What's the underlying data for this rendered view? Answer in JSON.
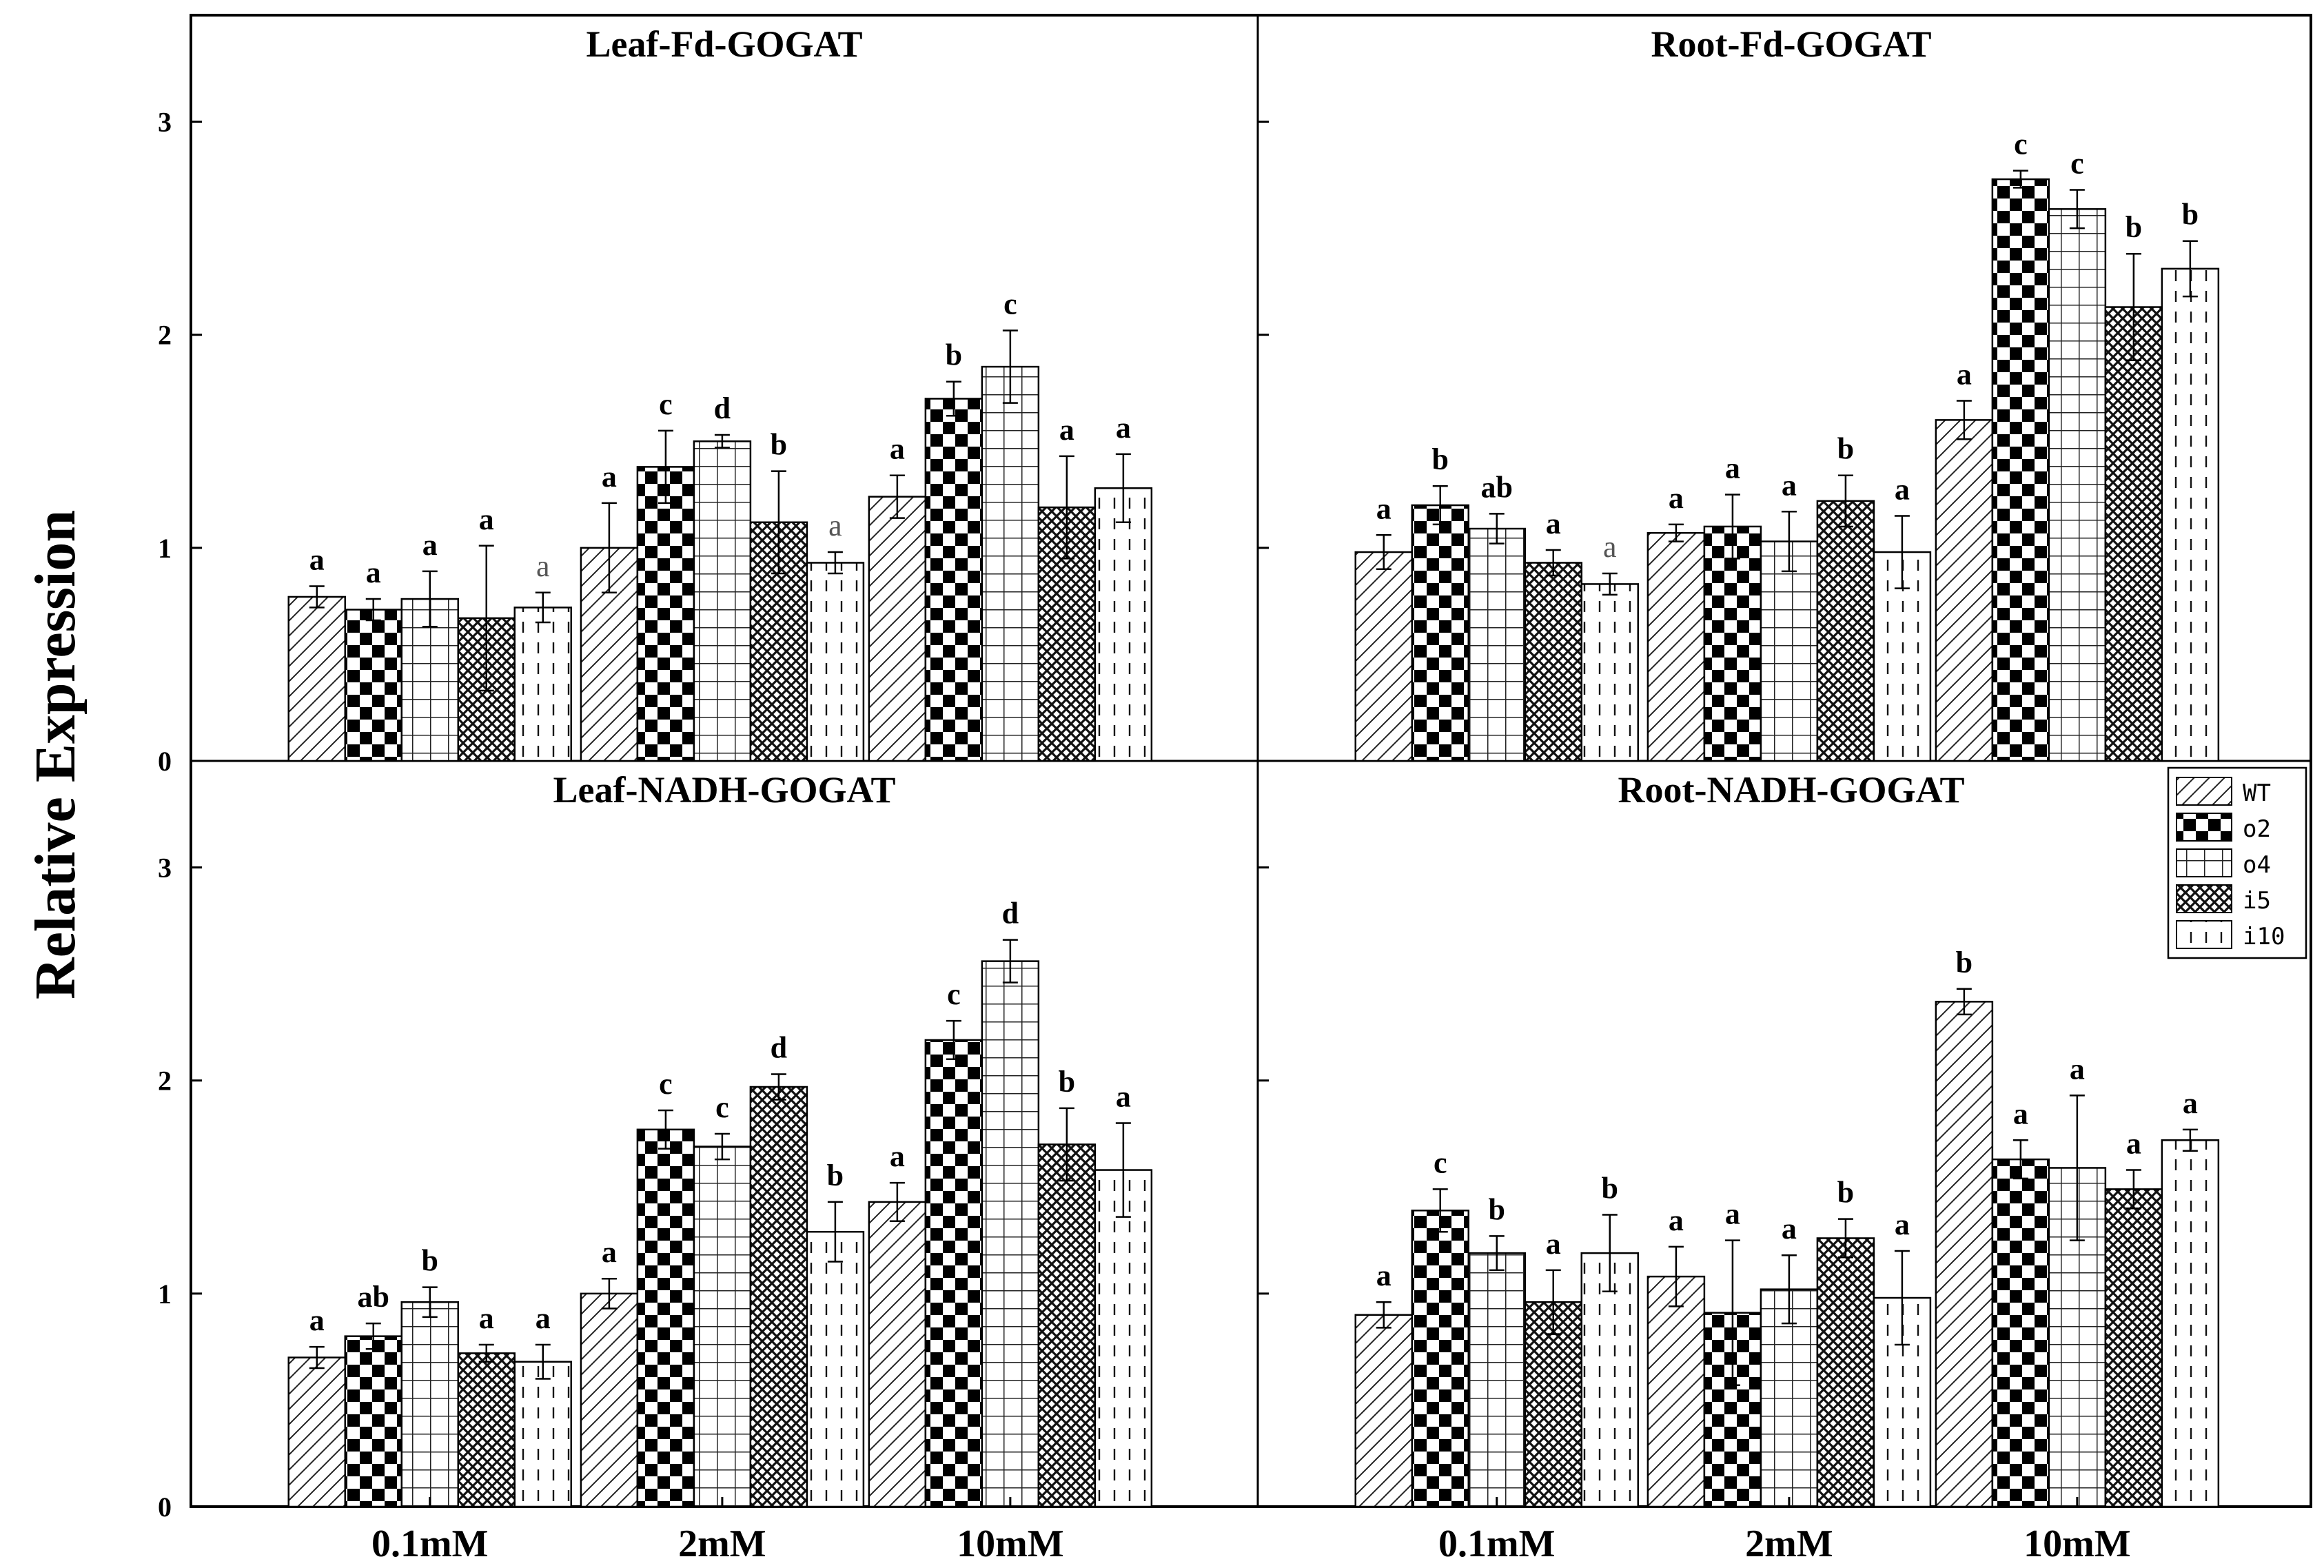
{
  "chart_data": {
    "type": "bar",
    "ylabel": "Relative Expression",
    "xlabel": "",
    "ylim": [
      0,
      3.5
    ],
    "yticks": [
      "0",
      "1",
      "2",
      "3"
    ],
    "categories": [
      "0.1mM",
      "2mM",
      "10mM"
    ],
    "series_names": [
      "WT",
      "o2",
      "o4",
      "i5",
      "i10"
    ],
    "legend": {
      "placement": "right",
      "entries": [
        "WT",
        "o2",
        "o4",
        "i5",
        "i10"
      ]
    },
    "panels": [
      {
        "title": "Leaf-Fd-GOGAT",
        "values": [
          [
            0.77,
            0.71,
            0.76,
            0.67,
            0.72
          ],
          [
            1.0,
            1.38,
            1.5,
            1.12,
            0.93
          ],
          [
            1.24,
            1.7,
            1.85,
            1.19,
            1.28
          ]
        ],
        "errors": [
          [
            0.05,
            0.05,
            0.13,
            0.34,
            0.07
          ],
          [
            0.21,
            0.17,
            0.03,
            0.24,
            0.05
          ],
          [
            0.1,
            0.08,
            0.17,
            0.24,
            0.16
          ]
        ],
        "labels": [
          [
            "a",
            "a",
            "a",
            "a",
            "a"
          ],
          [
            "a",
            "c",
            "d",
            "b",
            "a"
          ],
          [
            "a",
            "b",
            "c",
            "a",
            "a"
          ]
        ]
      },
      {
        "title": "Root-Fd-GOGAT",
        "values": [
          [
            0.98,
            1.2,
            1.09,
            0.93,
            0.83
          ],
          [
            1.07,
            1.1,
            1.03,
            1.22,
            0.98
          ],
          [
            1.6,
            2.73,
            2.59,
            2.13,
            2.31
          ]
        ],
        "errors": [
          [
            0.08,
            0.09,
            0.07,
            0.06,
            0.05
          ],
          [
            0.04,
            0.15,
            0.14,
            0.12,
            0.17
          ],
          [
            0.09,
            0.04,
            0.09,
            0.25,
            0.13
          ]
        ],
        "labels": [
          [
            "a",
            "b",
            "ab",
            "a",
            "a"
          ],
          [
            "a",
            "a",
            "a",
            "b",
            "a"
          ],
          [
            "a",
            "c",
            "c",
            "b",
            "b"
          ]
        ]
      },
      {
        "title": "Leaf-NADH-GOGAT",
        "values": [
          [
            0.7,
            0.8,
            0.96,
            0.72,
            0.68
          ],
          [
            1.0,
            1.77,
            1.69,
            1.97,
            1.29
          ],
          [
            1.43,
            2.19,
            2.56,
            1.7,
            1.58
          ]
        ],
        "errors": [
          [
            0.05,
            0.06,
            0.07,
            0.04,
            0.08
          ],
          [
            0.07,
            0.09,
            0.06,
            0.06,
            0.14
          ],
          [
            0.09,
            0.09,
            0.1,
            0.17,
            0.22
          ]
        ],
        "labels": [
          [
            "a",
            "ab",
            "b",
            "a",
            "a"
          ],
          [
            "a",
            "c",
            "c",
            "d",
            "b"
          ],
          [
            "a",
            "c",
            "d",
            "b",
            "a"
          ]
        ]
      },
      {
        "title": "Root-NADH-GOGAT",
        "values": [
          [
            0.9,
            1.39,
            1.19,
            0.96,
            1.19
          ],
          [
            1.08,
            0.91,
            1.02,
            1.26,
            0.98
          ],
          [
            2.37,
            1.63,
            1.59,
            1.49,
            1.72
          ]
        ],
        "errors": [
          [
            0.06,
            0.1,
            0.08,
            0.15,
            0.18
          ],
          [
            0.14,
            0.34,
            0.16,
            0.09,
            0.22
          ],
          [
            0.06,
            0.09,
            0.34,
            0.09,
            0.05
          ]
        ],
        "labels": [
          [
            "a",
            "c",
            "b",
            "a",
            "b"
          ],
          [
            "a",
            "a",
            "a",
            "b",
            "a"
          ],
          [
            "b",
            "a",
            "a",
            "a",
            "a"
          ]
        ]
      }
    ]
  }
}
